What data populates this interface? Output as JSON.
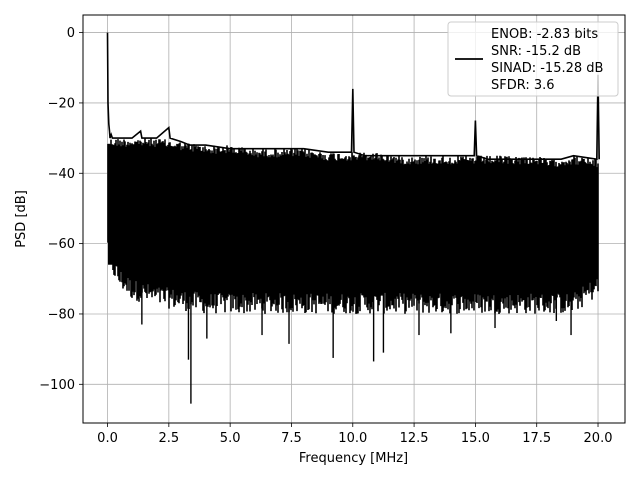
{
  "chart_data": {
    "type": "line",
    "xlabel": "Frequency [MHz]",
    "ylabel": "PSD [dB]",
    "xlim": [
      -1,
      21.1
    ],
    "ylim": [
      -111,
      5
    ],
    "grid": true,
    "legend_placement": "top-right",
    "line_color": "#000000",
    "xticks": [
      0.0,
      2.5,
      5.0,
      7.5,
      10.0,
      12.5,
      15.0,
      17.5,
      20.0
    ],
    "xtick_labels": [
      "0.0",
      "2.5",
      "5.0",
      "7.5",
      "10.0",
      "12.5",
      "15.0",
      "17.5",
      "20.0"
    ],
    "yticks": [
      0,
      -20,
      -40,
      -60,
      -80,
      -100
    ],
    "ytick_labels": [
      "0",
      "−20",
      "−40",
      "−60",
      "−80",
      "−100"
    ],
    "legend": [
      "ENOB: -2.83 bits",
      "SNR: -15.2 dB",
      "SINAD: -15.28 dB",
      "SFDR: 3.6"
    ],
    "series": [
      {
        "x": [
          0.0,
          0.02,
          0.05,
          0.08,
          0.1,
          0.15,
          0.2,
          0.3,
          0.5,
          1.0,
          1.35,
          1.4,
          2.0,
          2.5,
          2.55,
          3.0,
          3.35,
          3.45,
          4.0,
          5.0,
          6.0,
          7.5,
          8.0,
          9.0,
          9.5,
          9.95,
          10.0,
          10.05,
          10.5,
          11.0,
          11.5,
          12.5,
          14.0,
          14.95,
          15.0,
          15.05,
          15.5,
          16.0,
          17.5,
          18.5,
          19.0,
          19.95,
          20.0,
          20.05
        ],
        "y": [
          0.0,
          -20,
          -26,
          -28,
          -30,
          -29,
          -30,
          -30,
          -30,
          -30,
          -28,
          -30,
          -30,
          -27,
          -30,
          -31,
          -32,
          -32,
          -32,
          -33,
          -33,
          -33,
          -33,
          -34,
          -34,
          -34,
          -16,
          -34,
          -35,
          -35,
          -35,
          -35,
          -35,
          -35,
          -25,
          -35,
          -36,
          -36,
          -36,
          -36,
          -35,
          -36,
          -12,
          -36
        ]
      }
    ],
    "noise_floor": {
      "x": [
        0,
        0.1,
        0.5,
        1.0,
        2.0,
        3.0,
        4.0,
        5.0,
        6.0,
        7.5,
        8.0,
        9.0,
        10.0,
        11.0,
        12.0,
        12.5,
        13.0,
        14.0,
        15.0,
        16.0,
        17.0,
        17.5,
        18.0,
        19.0,
        20.0
      ],
      "upper": [
        -30,
        -30,
        -30,
        -30,
        -30,
        -31,
        -32,
        -32,
        -33,
        -33,
        -33,
        -34,
        -34,
        -34,
        -35,
        -35,
        -35,
        -35,
        -35,
        -35,
        -35,
        -35,
        -36,
        -35,
        -36
      ],
      "lower": [
        -60,
        -68,
        -73,
        -76,
        -78,
        -79,
        -80,
        -80,
        -80,
        -80,
        -80,
        -80,
        -80,
        -80,
        -80,
        -80,
        -80,
        -80,
        -80,
        -80,
        -80,
        -80,
        -80,
        -80,
        -75
      ]
    },
    "min_dips": {
      "x": [
        3.4,
        3.3,
        9.2,
        10.85,
        11.25,
        7.4,
        6.3,
        14.0,
        18.9,
        12.7,
        15.8,
        1.4,
        4.05,
        18.3
      ],
      "y": [
        -105.5,
        -93,
        -92.5,
        -93.5,
        -91,
        -88.5,
        -86,
        -85.5,
        -86,
        -86,
        -84,
        -83,
        -87,
        -82
      ]
    }
  }
}
